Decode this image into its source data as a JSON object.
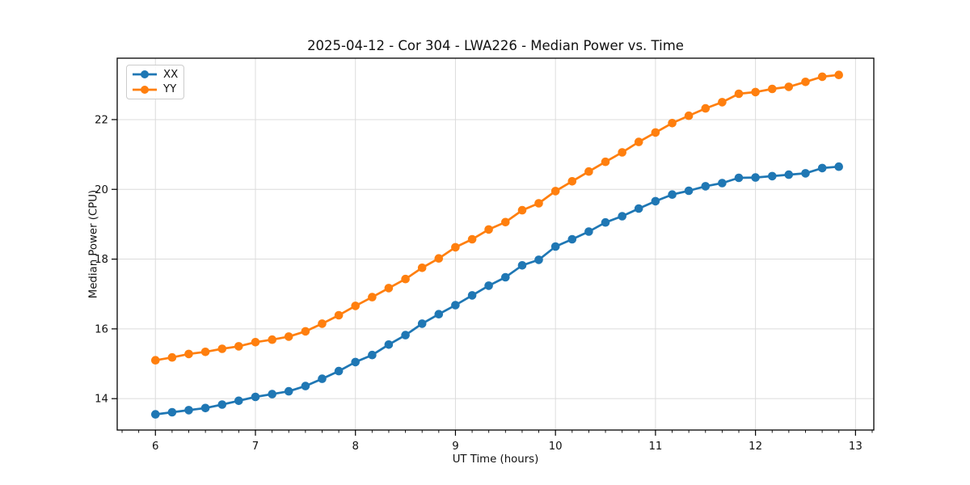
{
  "chart_data": {
    "type": "line",
    "title": "2025-04-12 - Cor 304 - LWA226 - Median Power vs. Time",
    "xlabel": "UT Time (hours)",
    "ylabel": "Median Power (CPU)",
    "xlim": [
      5.618,
      13.183
    ],
    "ylim": [
      13.1,
      23.76
    ],
    "x_major_ticks": [
      6,
      7,
      8,
      9,
      10,
      11,
      12,
      13
    ],
    "x_minor_interval_hours": 0.1667,
    "y_major_ticks": [
      14,
      16,
      18,
      20,
      22
    ],
    "grid": true,
    "legend_position": "upper-left",
    "x": [
      6.0,
      6.167,
      6.333,
      6.5,
      6.667,
      6.833,
      7.0,
      7.167,
      7.333,
      7.5,
      7.667,
      7.833,
      8.0,
      8.167,
      8.333,
      8.5,
      8.667,
      8.833,
      9.0,
      9.167,
      9.333,
      9.5,
      9.667,
      9.833,
      10.0,
      10.167,
      10.333,
      10.5,
      10.667,
      10.833,
      11.0,
      11.167,
      11.333,
      11.5,
      11.667,
      11.833,
      12.0,
      12.167,
      12.333,
      12.5,
      12.667,
      12.833
    ],
    "series": [
      {
        "name": "XX",
        "color": "#1f77b4",
        "marker": "circle",
        "values": [
          13.55,
          13.61,
          13.67,
          13.73,
          13.83,
          13.94,
          14.05,
          14.13,
          14.21,
          14.36,
          14.57,
          14.79,
          15.05,
          15.25,
          15.55,
          15.82,
          16.15,
          16.42,
          16.68,
          16.96,
          17.24,
          17.48,
          17.82,
          17.98,
          18.36,
          18.57,
          18.79,
          19.05,
          19.23,
          19.45,
          19.66,
          19.85,
          19.96,
          20.09,
          20.18,
          20.33,
          20.34,
          20.38,
          20.42,
          20.46,
          20.61,
          20.65
        ]
      },
      {
        "name": "YY",
        "color": "#ff7f0e",
        "marker": "circle",
        "values": [
          15.1,
          15.18,
          15.28,
          15.34,
          15.43,
          15.5,
          15.62,
          15.69,
          15.78,
          15.93,
          16.15,
          16.39,
          16.66,
          16.91,
          17.17,
          17.43,
          17.75,
          18.02,
          18.34,
          18.57,
          18.85,
          19.06,
          19.4,
          19.6,
          19.95,
          20.23,
          20.51,
          20.79,
          21.06,
          21.36,
          21.63,
          21.9,
          22.11,
          22.32,
          22.5,
          22.74,
          22.79,
          22.88,
          22.94,
          23.08,
          23.23,
          23.28
        ]
      }
    ],
    "styles": {
      "grid_color": "#dcdcdc",
      "spine_color": "#000000",
      "tick_color": "#000000",
      "tick_label_color": "#111111",
      "background": "#ffffff"
    }
  }
}
